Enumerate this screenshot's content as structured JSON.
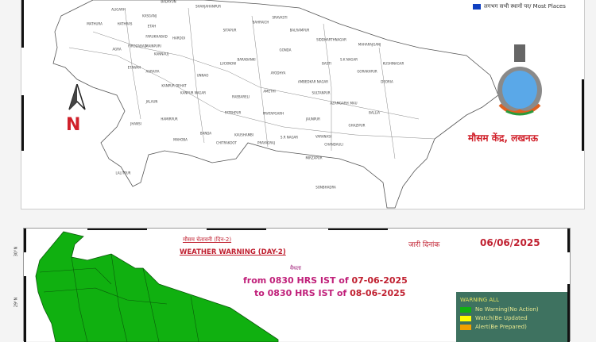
{
  "top_map": {
    "legend_most_places": "लगभग सभी स्थानों पर/ Most Places",
    "legend_color": "#1040c0",
    "north_label": "N",
    "office_label": "मौसम केंद्र, लखनऊ",
    "districts": [
      "ALIGARH",
      "BADAYUN",
      "SHAHJAHANPUR",
      "SRAVASTI",
      "BALRAMPUR",
      "SIDDHARTHNAGAR",
      "MAHARAJGANJ",
      "KUSHINAGAR",
      "DEORIA",
      "GORAKHPUR",
      "S.K NAGAR",
      "BASTI",
      "GONDA",
      "BAHRAICH",
      "SITAPUR",
      "HARDOI",
      "FARUKHABAD",
      "KASGANJ",
      "ETAH",
      "HATHRAS",
      "MATHURA",
      "AGRA",
      "FIROZABAD",
      "MAINPURI",
      "ETAWAH",
      "KANNAUJ",
      "AURAIYA",
      "KANPUR DEHAT",
      "KANPUR NAGAR",
      "UNNAO",
      "LUCKNOW",
      "BARABANKI",
      "AYODHYA",
      "AMBEDKAR NAGAR",
      "SULTANPUR",
      "AMETHI",
      "RAEBARELI",
      "FATEHPUR",
      "PRATAPGARH",
      "JAUNPUR",
      "AZAMGARH",
      "MAU",
      "BALLIA",
      "GHAZIPUR",
      "VARANASI",
      "CHANDAULI",
      "S.R NAGAR",
      "MIRZAPUR",
      "SONBHADRA",
      "PRAYAGRAJ",
      "KAUSHAMBI",
      "CHITRAKOOT",
      "BANDA",
      "MAHOBA",
      "HAMIRPUR",
      "JHANSI",
      "JALAUN",
      "LALITPUR"
    ]
  },
  "bottom_map": {
    "title_hindi": "मौसम चेतावनी (दिन-2)",
    "title": "WEATHER WARNING (DAY-2)",
    "issued_label": "जारी दिनांक",
    "issued_date": "06/06/2025",
    "validity_label": "वैधता",
    "from_text": "from 0830 HRS IST of",
    "from_date": "07-06-2025",
    "to_text": "to 0830 HRS IST of",
    "to_date": "08-06-2025",
    "lat_labels": [
      "30°N",
      "29°N"
    ],
    "fill_color": "#10b010",
    "legend": {
      "title": "WARNING ALL",
      "items": [
        {
          "label": "No Warning(No Action)",
          "color": "#10b010"
        },
        {
          "label": "Watch(Be Updated",
          "color": "#ffff00"
        },
        {
          "label": "Alert(Be Prepared)",
          "color": "#f0a000"
        }
      ]
    }
  }
}
